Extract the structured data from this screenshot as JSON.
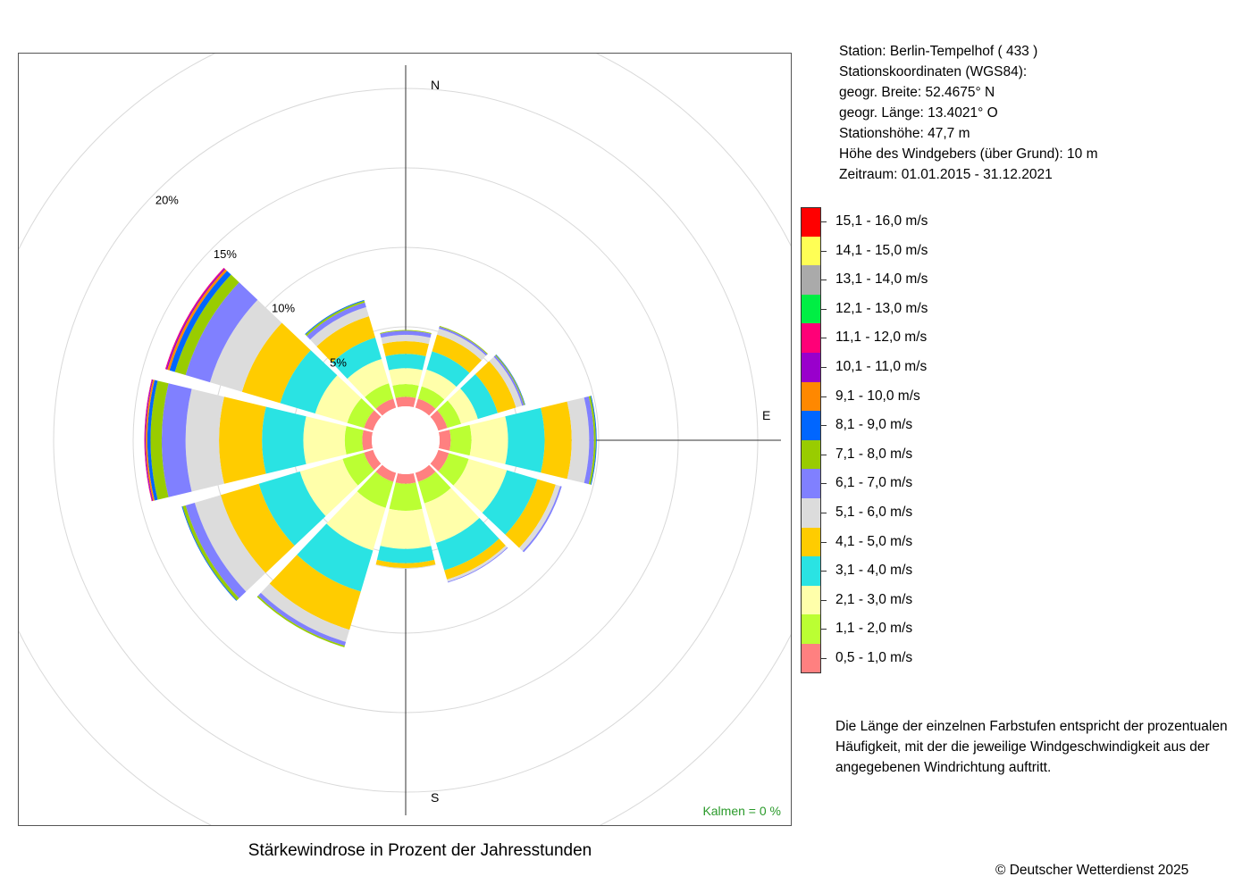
{
  "station": {
    "line1": "Station:  Berlin-Tempelhof  ( 433 )",
    "line2": "Stationskoordinaten (WGS84):",
    "line3": "geogr. Breite: 52.4675° N",
    "line4": "geogr. Länge: 13.4021° O",
    "line5": "Stationshöhe: 47,7 m",
    "line6": "Höhe des Windgebers (über Grund): 10 m",
    "line7": "Zeitraum: 01.01.2015 - 31.12.2021"
  },
  "legend_note": "Die Länge der einzelnen Farbstufen entspricht der prozentualen Häufigkeit, mit der die jeweilige Windgeschwindigkeit aus der angegebenen Windrichtung auftritt.",
  "copyright": "© Deutscher Wetterdienst  2025",
  "chart_data": {
    "type": "wind-rose",
    "title": "Stärkewindrose in Prozent der Jahresstunden",
    "calm_label": "Kalmen  =  0 %",
    "directions": [
      "N",
      "E",
      "S"
    ],
    "ring_labels": [
      "5%",
      "10%",
      "15%",
      "20%"
    ],
    "rings": [
      5,
      10,
      15,
      20,
      25
    ],
    "sector_directions_deg": [
      0,
      30,
      60,
      90,
      120,
      150,
      180,
      210,
      240,
      270,
      300,
      330
    ],
    "bins": [
      {
        "label": "0,5 - 1,0 m/s",
        "color": "#ff8080"
      },
      {
        "label": "1,1 - 2,0 m/s",
        "color": "#bbff33"
      },
      {
        "label": "2,1 - 3,0 m/s",
        "color": "#ffffaa"
      },
      {
        "label": "3,1 - 4,0 m/s",
        "color": "#2ae3e3"
      },
      {
        "label": "4,1 - 5,0 m/s",
        "color": "#ffcc00"
      },
      {
        "label": "5,1 - 6,0 m/s",
        "color": "#dcdcdc"
      },
      {
        "label": "6,1 - 7,0 m/s",
        "color": "#8080ff"
      },
      {
        "label": "7,1 - 8,0 m/s",
        "color": "#99cc00"
      },
      {
        "label": "8,1 - 9,0 m/s",
        "color": "#0066ff"
      },
      {
        "label": "9,1 - 10,0 m/s",
        "color": "#ff8800"
      },
      {
        "label": "10,1 - 11,0 m/s",
        "color": "#9900cc"
      },
      {
        "label": "11,1 - 12,0 m/s",
        "color": "#ff0077"
      },
      {
        "label": "12,1 - 13,0 m/s",
        "color": "#00ee44"
      },
      {
        "label": "13,1 - 14,0 m/s",
        "color": "#aaaaaa"
      },
      {
        "label": "14,1 - 15,0 m/s",
        "color": "#ffff55"
      },
      {
        "label": "15,1 - 16,0 m/s",
        "color": "#ff0000"
      }
    ],
    "sectors": [
      {
        "direction": 0,
        "values": [
          0.6,
          0.8,
          1.0,
          0.9,
          0.8,
          0.4,
          0.25,
          0.05,
          0.0,
          0.0,
          0.0,
          0.0,
          0.0,
          0.0,
          0.0,
          0.0
        ]
      },
      {
        "direction": 30,
        "values": [
          0.6,
          0.8,
          1.1,
          1.2,
          1.1,
          0.4,
          0.12,
          0.05,
          0.0,
          0.0,
          0.0,
          0.0,
          0.0,
          0.0,
          0.0,
          0.0
        ]
      },
      {
        "direction": 60,
        "values": [
          0.6,
          0.9,
          1.1,
          1.3,
          1.2,
          0.4,
          0.12,
          0.06,
          0.03,
          0.0,
          0.0,
          0.0,
          0.0,
          0.0,
          0.0,
          0.0
        ]
      },
      {
        "direction": 90,
        "values": [
          0.7,
          1.3,
          2.3,
          2.3,
          1.7,
          1.1,
          0.3,
          0.12,
          0.05,
          0.0,
          0.0,
          0.0,
          0.0,
          0.0,
          0.0,
          0.0
        ]
      },
      {
        "direction": 120,
        "values": [
          0.7,
          1.3,
          2.5,
          2.0,
          1.2,
          0.3,
          0.1,
          0.0,
          0.0,
          0.0,
          0.0,
          0.0,
          0.0,
          0.0,
          0.0,
          0.0
        ]
      },
      {
        "direction": 150,
        "values": [
          0.6,
          1.4,
          2.6,
          1.8,
          0.6,
          0.15,
          0.05,
          0.0,
          0.0,
          0.0,
          0.0,
          0.0,
          0.0,
          0.0,
          0.0,
          0.0
        ]
      },
      {
        "direction": 180,
        "values": [
          0.6,
          1.7,
          2.4,
          0.9,
          0.3,
          0.05,
          0.0,
          0.0,
          0.0,
          0.0,
          0.0,
          0.0,
          0.0,
          0.0,
          0.0,
          0.0
        ]
      },
      {
        "direction": 210,
        "values": [
          0.6,
          1.7,
          2.8,
          2.7,
          2.5,
          0.8,
          0.25,
          0.1,
          0.0,
          0.0,
          0.0,
          0.0,
          0.0,
          0.0,
          0.0,
          0.0
        ]
      },
      {
        "direction": 240,
        "values": [
          0.6,
          1.4,
          2.8,
          2.7,
          2.5,
          1.7,
          0.6,
          0.2,
          0.05,
          0.0,
          0.0,
          0.0,
          0.0,
          0.0,
          0.0,
          0.0
        ]
      },
      {
        "direction": 270,
        "values": [
          0.6,
          1.1,
          2.6,
          2.6,
          2.7,
          2.1,
          1.5,
          0.7,
          0.2,
          0.1,
          0.06,
          0.03,
          0.0,
          0.0,
          0.0,
          0.0
        ]
      },
      {
        "direction": 300,
        "values": [
          0.6,
          1.1,
          2.1,
          2.3,
          2.5,
          2.1,
          1.6,
          0.7,
          0.35,
          0.15,
          0.08,
          0.05,
          0.0,
          0.0,
          0.0,
          0.0
        ]
      },
      {
        "direction": 330,
        "values": [
          0.6,
          1.0,
          1.6,
          1.4,
          1.4,
          0.6,
          0.3,
          0.12,
          0.05,
          0.0,
          0.0,
          0.0,
          0.0,
          0.0,
          0.0,
          0.0
        ]
      }
    ]
  }
}
